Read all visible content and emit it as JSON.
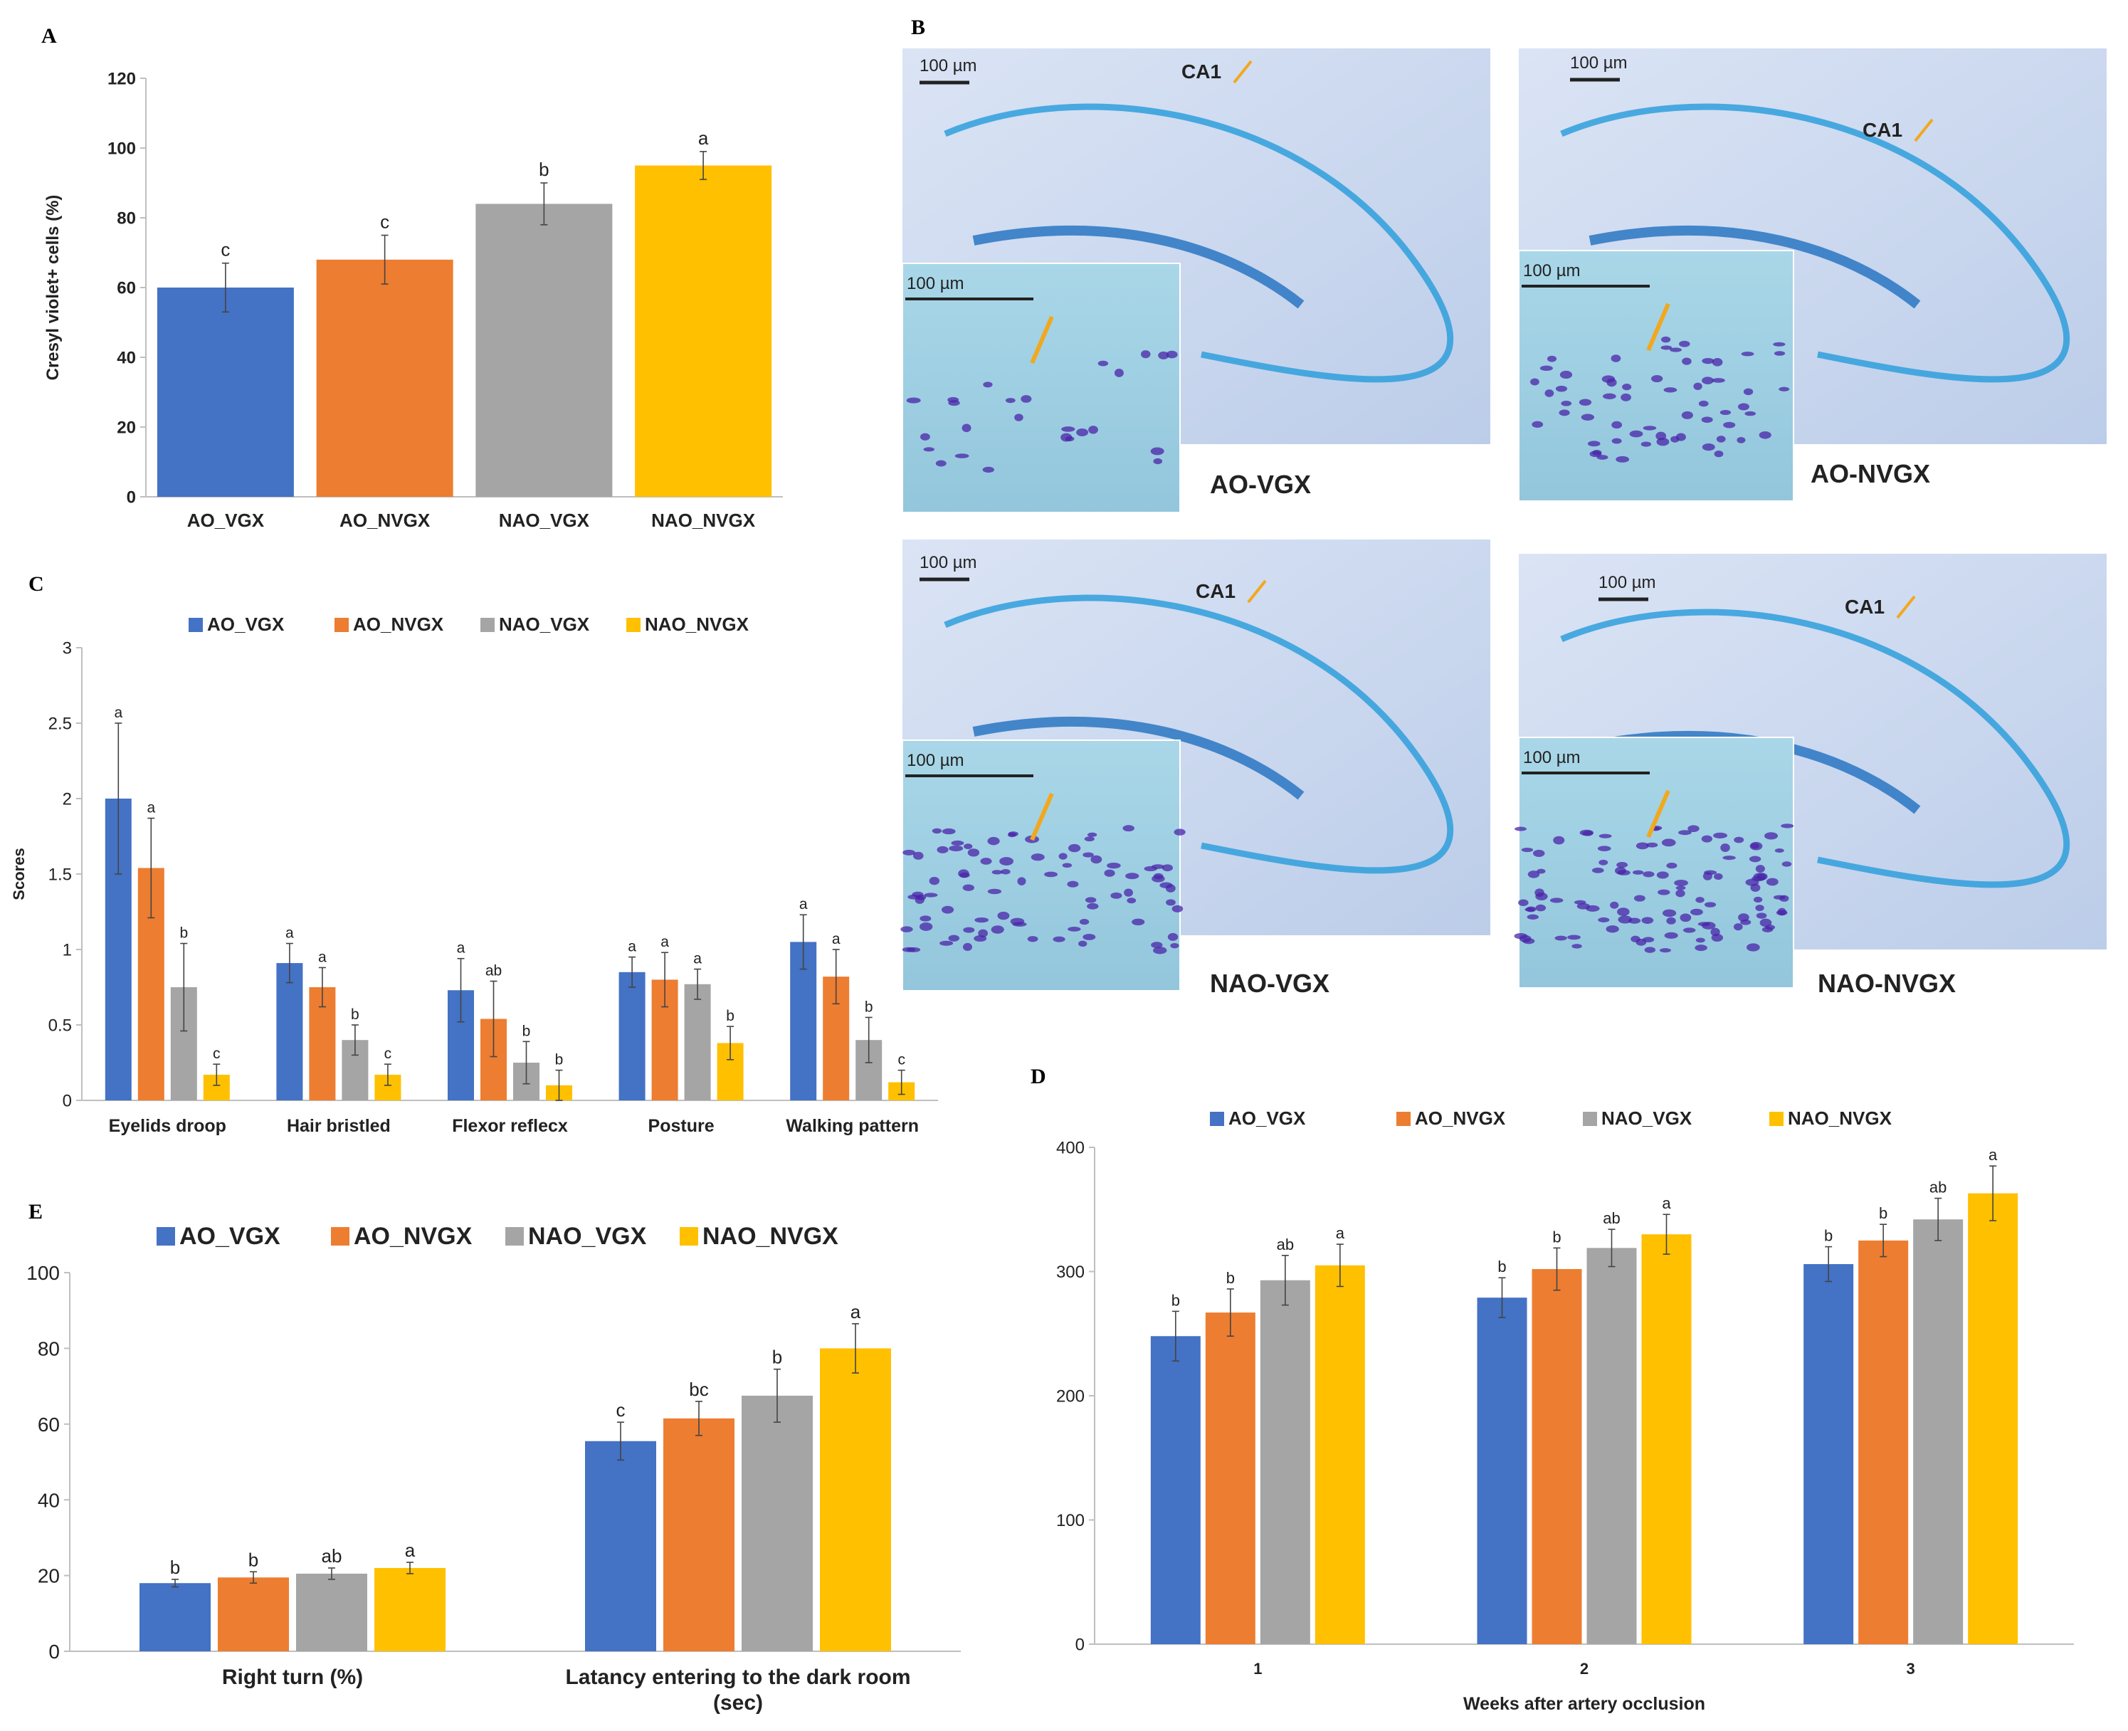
{
  "colors": {
    "AO_VGX": "#4472c4",
    "AO_NVGX": "#ed7d31",
    "NAO_VGX": "#a5a5a5",
    "NAO_NVGX": "#ffc000",
    "axis": "#bfbfbf",
    "text": "#222222",
    "arrow": "#f2a81d",
    "tissue_bg": "#c5d5ef",
    "stain": "#2f9fdc",
    "nucleus": "#4a24a8"
  },
  "legend": [
    "AO_VGX",
    "AO_NVGX",
    "NAO_VGX",
    "NAO_NVGX"
  ],
  "chart_data": [
    {
      "panel": "A",
      "type": "bar",
      "ylabel": "Cresyl violet+ cells (%)",
      "xlabel": "",
      "ylim": [
        0,
        120
      ],
      "yticks": [
        "0",
        "20",
        "40",
        "60",
        "80",
        "100",
        "120"
      ],
      "categories": [
        "AO_VGX",
        "AO_NVGX",
        "NAO_VGX",
        "NAO_NVGX"
      ],
      "values": [
        60,
        68,
        84,
        95
      ],
      "errors": [
        7,
        7,
        6,
        4
      ],
      "letters": [
        "c",
        "c",
        "b",
        "a"
      ]
    },
    {
      "panel": "C",
      "type": "bar",
      "ylabel": "Scores",
      "xlabel": "",
      "ylim": [
        0,
        3
      ],
      "yticks": [
        "0",
        "0.5",
        "1",
        "1.5",
        "2",
        "2.5",
        "3"
      ],
      "categories": [
        "Eyelids droop",
        "Hair bristled",
        "Flexor reflecx",
        "Posture",
        "Walking pattern"
      ],
      "series": [
        {
          "name": "AO_VGX",
          "values": [
            2.0,
            0.91,
            0.73,
            0.85,
            1.05
          ],
          "errors": [
            0.5,
            0.13,
            0.21,
            0.1,
            0.18
          ],
          "letters": [
            "a",
            "a",
            "a",
            "a",
            "a"
          ]
        },
        {
          "name": "AO_NVGX",
          "values": [
            1.54,
            0.75,
            0.54,
            0.8,
            0.82
          ],
          "errors": [
            0.33,
            0.13,
            0.25,
            0.18,
            0.18
          ],
          "letters": [
            "a",
            "a",
            "ab",
            "a",
            "a"
          ]
        },
        {
          "name": "NAO_VGX",
          "values": [
            0.75,
            0.4,
            0.25,
            0.77,
            0.4
          ],
          "errors": [
            0.29,
            0.1,
            0.14,
            0.1,
            0.15
          ],
          "letters": [
            "b",
            "b",
            "b",
            "a",
            "b"
          ]
        },
        {
          "name": "NAO_NVGX",
          "values": [
            0.17,
            0.17,
            0.1,
            0.38,
            0.12
          ],
          "errors": [
            0.07,
            0.07,
            0.1,
            0.11,
            0.08
          ],
          "letters": [
            "c",
            "c",
            "b",
            "b",
            "c"
          ]
        }
      ]
    },
    {
      "panel": "E",
      "type": "bar",
      "ylabel": "",
      "xlabel": "",
      "ylim": [
        0,
        100
      ],
      "yticks": [
        "0",
        "20",
        "40",
        "60",
        "80",
        "100"
      ],
      "categories": [
        "Right turn (%)",
        "Latancy entering to the dark room (sec)"
      ],
      "category_lines": [
        [
          "Right turn (%)"
        ],
        [
          "Latancy entering to the dark room",
          "(sec)"
        ]
      ],
      "series": [
        {
          "name": "AO_VGX",
          "values": [
            18,
            55.5
          ],
          "errors": [
            1,
            5
          ],
          "letters": [
            "b",
            "c"
          ]
        },
        {
          "name": "AO_NVGX",
          "values": [
            19.5,
            61.5
          ],
          "errors": [
            1.5,
            4.5
          ],
          "letters": [
            "b",
            "bc"
          ]
        },
        {
          "name": "NAO_VGX",
          "values": [
            20.5,
            67.5
          ],
          "errors": [
            1.5,
            7
          ],
          "letters": [
            "ab",
            "b"
          ]
        },
        {
          "name": "NAO_NVGX",
          "values": [
            22,
            80
          ],
          "errors": [
            1.5,
            6.5
          ],
          "letters": [
            "a",
            "a"
          ]
        }
      ]
    },
    {
      "panel": "D",
      "type": "bar",
      "ylabel": "",
      "xlabel": "Weeks after artery occlusion",
      "ylim": [
        0,
        400
      ],
      "yticks": [
        "0",
        "100",
        "200",
        "300",
        "400"
      ],
      "categories": [
        "1",
        "2",
        "3"
      ],
      "series": [
        {
          "name": "AO_VGX",
          "values": [
            248,
            279,
            306
          ],
          "errors": [
            20,
            16,
            14
          ],
          "letters": [
            "b",
            "b",
            "b"
          ]
        },
        {
          "name": "AO_NVGX",
          "values": [
            267,
            302,
            325
          ],
          "errors": [
            19,
            17,
            13
          ],
          "letters": [
            "b",
            "b",
            "b"
          ]
        },
        {
          "name": "NAO_VGX",
          "values": [
            293,
            319,
            342
          ],
          "errors": [
            20,
            15,
            17
          ],
          "letters": [
            "ab",
            "ab",
            "ab"
          ]
        },
        {
          "name": "NAO_NVGX",
          "values": [
            305,
            330,
            363
          ],
          "errors": [
            17,
            16,
            22
          ],
          "letters": [
            "a",
            "a",
            "a"
          ]
        }
      ]
    }
  ],
  "micrographs": {
    "panel_label": "B",
    "region_label": "CA1",
    "scale_label": "100 µm",
    "captions": [
      "AO-VGX",
      "AO-NVGX",
      "NAO-VGX",
      "NAO-NVGX"
    ]
  }
}
